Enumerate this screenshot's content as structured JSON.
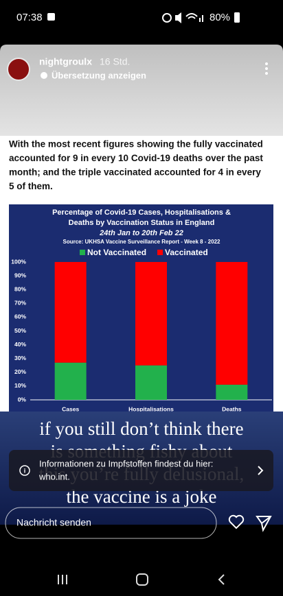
{
  "status_bar": {
    "time": "07:38",
    "battery": "80%"
  },
  "story": {
    "username": "nightgroulx",
    "time_ago": "16 Std.",
    "translate": "Übersetzung anzeigen"
  },
  "post_text": [
    "With the most recent figures showing the fully vaccinated",
    "accounted for 9 in every 10 Covid-19 deaths over the past",
    "month; and the triple vaccinated accounted for 4 in every",
    "5 of them."
  ],
  "chart_data": {
    "type": "bar",
    "stacked": true,
    "title": [
      "Percentage of Covid-19 Cases, Hospitalisations &",
      "Deaths by Vaccination Status in England"
    ],
    "subtitle": "24th Jan to 20th Feb 22",
    "source": "Source: UKHSA Vaccine Surveillance Report - Week 8 - 2022",
    "categories": [
      "Cases",
      "Hospitalisations",
      "Deaths"
    ],
    "series": [
      {
        "name": "Not Vaccinated",
        "color": "#22b14c",
        "values": [
          27,
          25,
          11
        ]
      },
      {
        "name": "Vaccinated",
        "color": "#ff0000",
        "values": [
          73,
          75,
          89
        ]
      }
    ],
    "ylim": [
      0,
      100
    ],
    "yticks": [
      {
        "value": 0,
        "label": "0%"
      },
      {
        "value": 10,
        "label": "10%"
      },
      {
        "value": 20,
        "label": "20%"
      },
      {
        "value": 30,
        "label": "30%"
      },
      {
        "value": 40,
        "label": "40%"
      },
      {
        "value": 50,
        "label": "50%"
      },
      {
        "value": 60,
        "label": "60%"
      },
      {
        "value": 70,
        "label": "70%"
      },
      {
        "value": 80,
        "label": "80%"
      },
      {
        "value": 90,
        "label": "90%"
      },
      {
        "value": 100,
        "label": "100%"
      }
    ],
    "grid": false,
    "legend": "top"
  },
  "overlay_text": [
    "if you still don’t think there",
    "is something fishy about",
    "this you’re fully delusional,",
    "the vaccine is a joke"
  ],
  "info_banner": [
    "Informationen zu Impfstoffen findest du hier:",
    "who.int."
  ],
  "reply": {
    "placeholder": "Nachricht senden"
  }
}
